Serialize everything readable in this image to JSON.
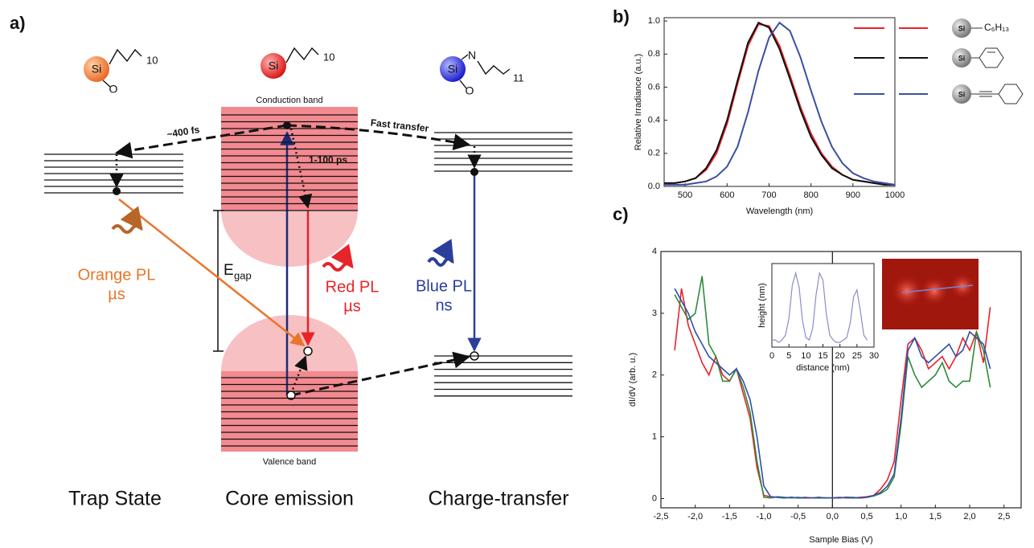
{
  "panel_labels": [
    "a)",
    "b)",
    "c)"
  ],
  "diagram": {
    "molecule_si": "Si",
    "chain_10": "10",
    "chain_11": "11",
    "atom_o": "O",
    "atom_n": "N",
    "conduction_band": "Conduction band",
    "valence_band": "Valence band",
    "trap_time": "~400 fs",
    "fast_transfer": "Fast transfer",
    "relax_time": "1-100 ps",
    "egap_e": "E",
    "egap_sub": "gap",
    "orange_pl": "Orange PL",
    "orange_time": "µs",
    "red_pl": "Red PL",
    "red_time": "µs",
    "blue_pl": "Blue PL",
    "blue_time": "ns",
    "trap_state": "Trap State",
    "core_emission": "Core emission",
    "charge_transfer": "Charge-transfer"
  },
  "chart_data": [
    {
      "type": "line",
      "x_label": "Wavelength (nm)",
      "y_label": "Relative Irradiance (a.u.)",
      "molecule_label": "Si",
      "x": [
        450,
        475,
        500,
        525,
        550,
        575,
        600,
        625,
        650,
        675,
        700,
        725,
        750,
        775,
        800,
        825,
        850,
        875,
        900,
        925,
        950,
        975,
        1000
      ],
      "series": [
        {
          "name": "C₆H₁₃",
          "color": "#e8242b",
          "values": [
            0.02,
            0.02,
            0.03,
            0.05,
            0.1,
            0.2,
            0.38,
            0.62,
            0.85,
            0.98,
            0.97,
            0.85,
            0.67,
            0.48,
            0.32,
            0.2,
            0.12,
            0.07,
            0.04,
            0.03,
            0.02,
            0.01,
            0.01
          ]
        },
        {
          "color": "#111111",
          "values": [
            0.02,
            0.02,
            0.03,
            0.05,
            0.11,
            0.22,
            0.4,
            0.64,
            0.87,
            0.99,
            0.96,
            0.83,
            0.65,
            0.46,
            0.3,
            0.19,
            0.11,
            0.07,
            0.04,
            0.03,
            0.02,
            0.01,
            0.01
          ]
        },
        {
          "color": "#3b4fa0",
          "values": [
            0.01,
            0.01,
            0.01,
            0.02,
            0.03,
            0.06,
            0.12,
            0.24,
            0.45,
            0.7,
            0.9,
            0.99,
            0.94,
            0.78,
            0.58,
            0.39,
            0.24,
            0.14,
            0.08,
            0.05,
            0.03,
            0.02,
            0.01
          ]
        }
      ],
      "xlim": [
        450,
        1000
      ],
      "xticks": [
        500,
        600,
        700,
        800,
        900,
        1000
      ],
      "ylim": [
        0,
        1.02
      ],
      "yticks": [
        {
          "value": 0,
          "label": "0.0"
        },
        0.2,
        0.4,
        0.6,
        0.8,
        {
          "value": 1,
          "label": "1.0"
        }
      ]
    },
    {
      "type": "line",
      "x_label": "Sample Bias (V)",
      "y_label": "dI/dV (arb. u.)",
      "x": [
        -2.3,
        -2.2,
        -2.1,
        -2.0,
        -1.9,
        -1.8,
        -1.7,
        -1.6,
        -1.5,
        -1.4,
        -1.3,
        -1.2,
        -1.1,
        -1.0,
        -0.9,
        -0.8,
        -0.7,
        -0.6,
        -0.5,
        -0.4,
        -0.3,
        -0.2,
        -0.1,
        0,
        0.1,
        0.2,
        0.3,
        0.4,
        0.5,
        0.6,
        0.7,
        0.8,
        0.9,
        1.0,
        1.1,
        1.2,
        1.3,
        1.4,
        1.5,
        1.6,
        1.7,
        1.8,
        1.9,
        2.0,
        2.1,
        2.2,
        2.3
      ],
      "series": [
        {
          "color": "#e8242b",
          "values": [
            2.4,
            3.4,
            2.8,
            2.5,
            2.2,
            2.0,
            2.3,
            2.0,
            1.9,
            2.1,
            1.7,
            1.3,
            0.5,
            0.05,
            0.03,
            0.02,
            0.01,
            0.02,
            0.01,
            0.02,
            0.01,
            0.02,
            0.01,
            0.01,
            0.02,
            0.01,
            0.01,
            0.02,
            0.03,
            0.05,
            0.15,
            0.3,
            0.6,
            1.6,
            2.5,
            2.6,
            2.4,
            2.1,
            2.2,
            2.3,
            2.1,
            2.3,
            2.6,
            2.4,
            2.7,
            2.2,
            3.1
          ]
        },
        {
          "color": "#2e8b3a",
          "values": [
            3.3,
            3.1,
            2.9,
            3.0,
            3.6,
            2.5,
            2.3,
            1.9,
            1.9,
            2.1,
            1.8,
            1.4,
            0.6,
            0.02,
            0.01,
            0.03,
            0.02,
            0.01,
            0.02,
            0.01,
            0.01,
            0.02,
            0.01,
            0.01,
            0.01,
            0.02,
            0.02,
            0.01,
            0.02,
            0.04,
            0.08,
            0.15,
            0.35,
            1.2,
            2.3,
            2.0,
            1.8,
            1.9,
            2.0,
            2.2,
            1.9,
            1.8,
            1.9,
            1.9,
            2.7,
            2.4,
            1.8
          ]
        },
        {
          "color": "#2f4fa8",
          "values": [
            3.4,
            3.2,
            3.0,
            2.7,
            2.5,
            2.3,
            2.2,
            2.1,
            2.0,
            2.1,
            1.9,
            1.6,
            1.0,
            0.2,
            0.03,
            0.02,
            0.01,
            0.02,
            0.01,
            0.01,
            0.01,
            0.01,
            0.01,
            0.01,
            0.01,
            0.02,
            0.01,
            0.01,
            0.02,
            0.05,
            0.1,
            0.2,
            0.4,
            1.3,
            2.4,
            2.6,
            2.3,
            2.2,
            2.3,
            2.4,
            2.5,
            2.3,
            2.4,
            2.7,
            2.6,
            2.5,
            2.1
          ]
        }
      ],
      "xlim": [
        -2.5,
        2.75
      ],
      "xticks": [
        {
          "value": -2.5,
          "label": "-2,5"
        },
        {
          "value": -2,
          "label": "-2,0"
        },
        {
          "value": -1.5,
          "label": "-1,5"
        },
        {
          "value": -1,
          "label": "-1,0"
        },
        {
          "value": -0.5,
          "label": "-0,5"
        },
        {
          "value": 0,
          "label": "0,0"
        },
        {
          "value": 0.5,
          "label": "0,5"
        },
        {
          "value": 1,
          "label": "1,0"
        },
        {
          "value": 1.5,
          "label": "1,5"
        },
        {
          "value": 2,
          "label": "2,0"
        },
        {
          "value": 2.5,
          "label": "2,5"
        }
      ],
      "ylim": [
        -0.15,
        4
      ],
      "yticks": [
        0,
        1,
        2,
        3,
        4
      ]
    },
    {
      "type": "line",
      "x_label": "distance (nm)",
      "y_label": "height (nm)",
      "x": [
        0,
        1,
        2,
        3,
        4,
        5,
        6,
        7,
        8,
        9,
        10,
        11,
        12,
        13,
        14,
        15,
        16,
        17,
        18,
        19,
        20,
        21,
        22,
        23,
        24,
        25,
        26,
        27,
        28
      ],
      "series": [
        {
          "color": "#8c8cc8",
          "values": [
            0.3,
            0.3,
            0.2,
            0.3,
            0.5,
            1.2,
            2.6,
            3.1,
            2.5,
            1.1,
            0.4,
            0.3,
            0.8,
            2.2,
            3.1,
            2.8,
            1.4,
            0.5,
            0.3,
            0.2,
            0.2,
            0.3,
            0.4,
            1.0,
            2.1,
            2.4,
            1.5,
            0.5,
            0.3
          ]
        }
      ],
      "xlim": [
        0,
        30
      ],
      "xticks": [
        0,
        5,
        10,
        15,
        20,
        25,
        30
      ],
      "ylim": [
        0,
        3.5
      ]
    }
  ]
}
